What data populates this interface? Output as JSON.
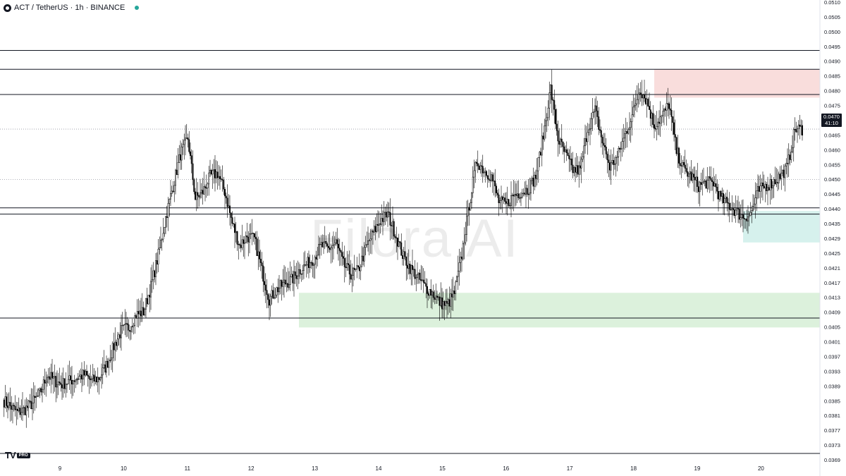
{
  "header": {
    "symbol_text": "ACT / TetherUS · 1h · BINANCE",
    "status_color": "#26a69a"
  },
  "watermark": "Filora AI",
  "branding": {
    "tv": "TV",
    "badge": "PRO"
  },
  "last_price": {
    "value": "0.0470",
    "countdown": "41:10"
  },
  "chart_data": {
    "type": "candlestick",
    "interval": "1h",
    "ylim": [
      0.0367,
      0.0511
    ],
    "y_ticks": [
      "0.0510",
      "0.0505",
      "0.0500",
      "0.0495",
      "0.0490",
      "0.0485",
      "0.0480",
      "0.0475",
      "0.0470",
      "0.0465",
      "0.0460",
      "0.0455",
      "0.0450",
      "0.0445",
      "0.0440",
      "0.0435",
      "0.0429",
      "0.0425",
      "0.0421",
      "0.0417",
      "0.0413",
      "0.0409",
      "0.0405",
      "0.0401",
      "0.0397",
      "0.0393",
      "0.0389",
      "0.0385",
      "0.0381",
      "0.0377",
      "0.0373",
      "0.0369"
    ],
    "x_ticks": [
      "9",
      "10",
      "11",
      "12",
      "13",
      "14",
      "15",
      "16",
      "17",
      "18",
      "19",
      "20"
    ],
    "close_path": [
      [
        0,
        0.0384
      ],
      [
        6,
        0.0382
      ],
      [
        12,
        0.038
      ],
      [
        18,
        0.0381
      ],
      [
        24,
        0.0383
      ],
      [
        30,
        0.0386
      ],
      [
        36,
        0.0392
      ],
      [
        42,
        0.039
      ],
      [
        48,
        0.0389
      ],
      [
        54,
        0.039
      ],
      [
        60,
        0.0391
      ],
      [
        66,
        0.0392
      ],
      [
        72,
        0.039
      ],
      [
        78,
        0.0391
      ],
      [
        84,
        0.0395
      ],
      [
        90,
        0.0401
      ],
      [
        96,
        0.0406
      ],
      [
        102,
        0.0407
      ],
      [
        108,
        0.0411
      ],
      [
        114,
        0.0412
      ],
      [
        120,
        0.042
      ],
      [
        126,
        0.043
      ],
      [
        132,
        0.0442
      ],
      [
        138,
        0.0452
      ],
      [
        144,
        0.0462
      ],
      [
        150,
        0.0467
      ],
      [
        156,
        0.0448
      ],
      [
        162,
        0.045
      ],
      [
        168,
        0.0455
      ],
      [
        174,
        0.0456
      ],
      [
        180,
        0.045
      ],
      [
        186,
        0.044
      ],
      [
        192,
        0.0433
      ],
      [
        198,
        0.0436
      ],
      [
        204,
        0.0435
      ],
      [
        210,
        0.0425
      ],
      [
        216,
        0.0416
      ],
      [
        222,
        0.0419
      ],
      [
        228,
        0.0421
      ],
      [
        234,
        0.0422
      ],
      [
        240,
        0.0425
      ],
      [
        246,
        0.0427
      ],
      [
        252,
        0.0429
      ],
      [
        258,
        0.0433
      ],
      [
        264,
        0.0432
      ],
      [
        270,
        0.0434
      ],
      [
        276,
        0.0427
      ],
      [
        282,
        0.0424
      ],
      [
        288,
        0.0425
      ],
      [
        294,
        0.0432
      ],
      [
        300,
        0.0437
      ],
      [
        306,
        0.0441
      ],
      [
        312,
        0.0443
      ],
      [
        318,
        0.0437
      ],
      [
        324,
        0.043
      ],
      [
        330,
        0.0426
      ],
      [
        336,
        0.0423
      ],
      [
        342,
        0.042
      ],
      [
        348,
        0.0418
      ],
      [
        354,
        0.0415
      ],
      [
        360,
        0.0414
      ],
      [
        366,
        0.0418
      ],
      [
        372,
        0.043
      ],
      [
        378,
        0.0446
      ],
      [
        384,
        0.046
      ],
      [
        390,
        0.0457
      ],
      [
        396,
        0.0455
      ],
      [
        402,
        0.0447
      ],
      [
        408,
        0.0446
      ],
      [
        414,
        0.0449
      ],
      [
        420,
        0.045
      ],
      [
        426,
        0.0451
      ],
      [
        432,
        0.0455
      ],
      [
        438,
        0.0468
      ],
      [
        444,
        0.0483
      ],
      [
        450,
        0.0467
      ],
      [
        456,
        0.0462
      ],
      [
        462,
        0.0457
      ],
      [
        468,
        0.0457
      ],
      [
        474,
        0.047
      ],
      [
        480,
        0.0476
      ],
      [
        486,
        0.0466
      ],
      [
        492,
        0.0458
      ],
      [
        498,
        0.0461
      ],
      [
        504,
        0.0468
      ],
      [
        510,
        0.0474
      ],
      [
        516,
        0.0483
      ],
      [
        522,
        0.0479
      ],
      [
        528,
        0.0471
      ],
      [
        534,
        0.0474
      ],
      [
        540,
        0.0478
      ],
      [
        546,
        0.0463
      ],
      [
        552,
        0.0457
      ],
      [
        558,
        0.0455
      ],
      [
        564,
        0.0452
      ],
      [
        570,
        0.0453
      ],
      [
        576,
        0.0453
      ],
      [
        582,
        0.0448
      ],
      [
        588,
        0.0446
      ],
      [
        594,
        0.0444
      ],
      [
        600,
        0.0442
      ],
      [
        606,
        0.0443
      ],
      [
        612,
        0.045
      ],
      [
        618,
        0.0452
      ],
      [
        624,
        0.0453
      ],
      [
        630,
        0.0455
      ],
      [
        636,
        0.0458
      ],
      [
        642,
        0.047
      ],
      [
        648,
        0.047
      ]
    ],
    "horizontal_levels": [
      0.0495,
      0.0489,
      0.0481,
      0.0445,
      0.0443,
      0.041
    ],
    "dotted_levels": [
      0.047,
      0.0454
    ],
    "zones": [
      {
        "name": "supply-zone",
        "color": "#f8d7d6",
        "from_x": 528,
        "y_top": 0.0489,
        "y_bottom": 0.048
      },
      {
        "name": "demand-zone-upper",
        "color": "#cfeeea",
        "from_x": 600,
        "y_top": 0.0444,
        "y_bottom": 0.0434
      },
      {
        "name": "demand-zone-lower",
        "color": "#d6efd6",
        "from_x": 240,
        "y_top": 0.0418,
        "y_bottom": 0.0407
      }
    ],
    "grid": false,
    "up_color": "#ffffff",
    "down_color": "#000000"
  }
}
